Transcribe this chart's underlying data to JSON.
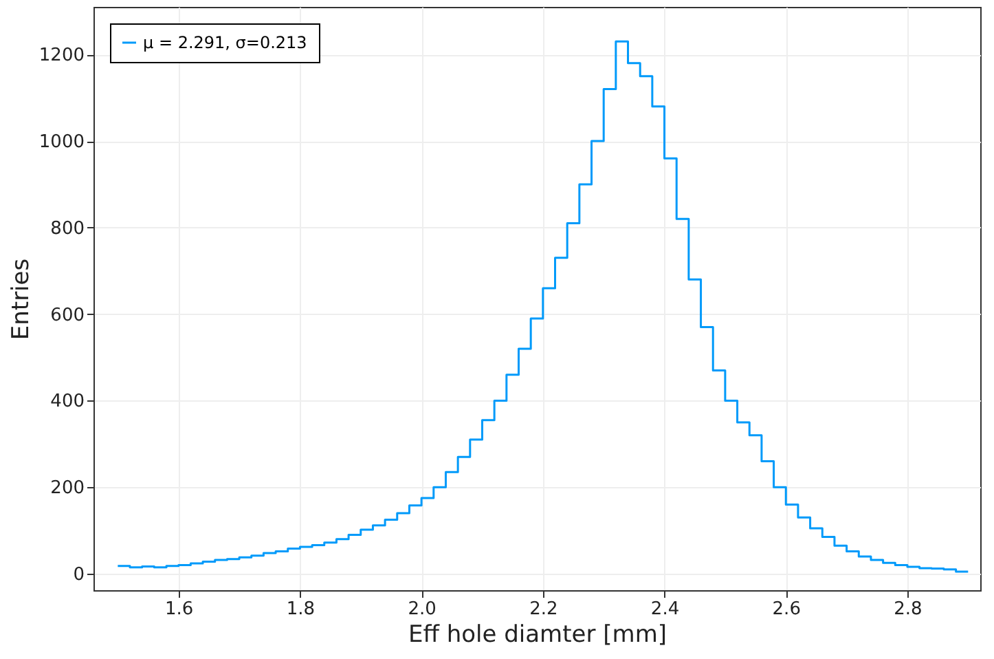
{
  "chart_data": {
    "type": "histogram",
    "xlabel": "Eff hole diamter [mm]",
    "ylabel": "Entries",
    "bins": [
      1.5,
      1.52,
      1.54,
      1.56,
      1.58,
      1.6,
      1.62,
      1.64,
      1.66,
      1.68,
      1.7,
      1.72,
      1.74,
      1.76,
      1.78,
      1.8,
      1.82,
      1.84,
      1.86,
      1.88,
      1.9,
      1.92,
      1.94,
      1.96,
      1.98,
      2.0,
      2.02,
      2.04,
      2.06,
      2.08,
      2.1,
      2.12,
      2.14,
      2.16,
      2.18,
      2.2,
      2.22,
      2.24,
      2.26,
      2.28,
      2.3,
      2.32,
      2.34,
      2.36,
      2.38,
      2.4,
      2.42,
      2.44,
      2.46,
      2.48,
      2.5,
      2.52,
      2.54,
      2.56,
      2.58,
      2.6,
      2.62,
      2.64,
      2.66,
      2.68,
      2.7,
      2.72,
      2.74,
      2.76,
      2.78,
      2.8,
      2.82,
      2.84,
      2.86,
      2.88,
      2.9
    ],
    "series": [
      {
        "name": "μ = 2.291, σ=0.213",
        "color": "#009afa",
        "values": [
          18,
          15,
          17,
          15,
          18,
          20,
          24,
          28,
          32,
          34,
          38,
          42,
          48,
          52,
          58,
          62,
          66,
          72,
          80,
          90,
          102,
          112,
          125,
          140,
          158,
          175,
          200,
          235,
          270,
          310,
          355,
          400,
          460,
          520,
          590,
          660,
          730,
          810,
          900,
          1000,
          1120,
          1230,
          1180,
          1150,
          1080,
          960,
          820,
          680,
          570,
          470,
          400,
          350,
          320,
          260,
          200,
          160,
          130,
          105,
          85,
          65,
          52,
          40,
          32,
          25,
          20,
          16,
          13,
          12,
          10,
          5
        ]
      }
    ],
    "xlim": [
      1.46,
      2.92
    ],
    "ylim": [
      -38,
      1310
    ],
    "xticks": [
      1.6,
      1.8,
      {
        "value": 2.0,
        "label": "2.0"
      },
      2.2,
      2.4,
      2.6,
      2.8
    ],
    "yticks": [
      0,
      200,
      400,
      600,
      800,
      1000,
      1200
    ],
    "grid": true,
    "legend": "top left"
  }
}
